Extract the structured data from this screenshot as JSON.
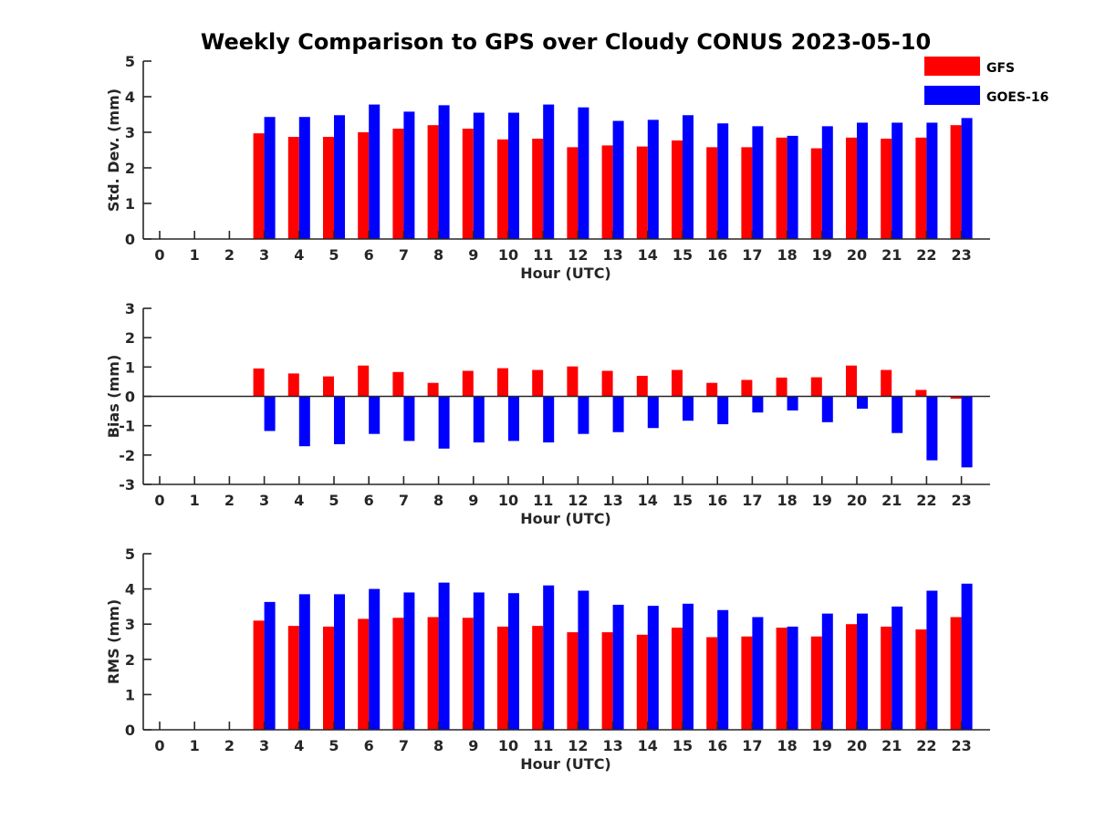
{
  "title": "Weekly Comparison to GPS over Cloudy CONUS 2023-05-10",
  "colors": {
    "GFS": "#ff0000",
    "GOES-16": "#0000ff",
    "axis": "#262626"
  },
  "chart_data": [
    {
      "type": "bar",
      "xlabel": "Hour (UTC)",
      "ylabel": "Std. Dev. (mm)",
      "ylim": [
        0,
        5
      ],
      "yticks": [
        0,
        1,
        2,
        3,
        4,
        5
      ],
      "legend_position": "top-right",
      "categories": [
        "0",
        "1",
        "2",
        "3",
        "4",
        "5",
        "6",
        "7",
        "8",
        "9",
        "10",
        "11",
        "12",
        "13",
        "14",
        "15",
        "16",
        "17",
        "18",
        "19",
        "20",
        "21",
        "22",
        "23"
      ],
      "series": [
        {
          "name": "GFS",
          "values": [
            null,
            null,
            null,
            2.97,
            2.87,
            2.87,
            3.0,
            3.1,
            3.2,
            3.1,
            2.8,
            2.82,
            2.58,
            2.63,
            2.6,
            2.77,
            2.58,
            2.58,
            2.85,
            2.55,
            2.85,
            2.82,
            2.85,
            3.2
          ]
        },
        {
          "name": "GOES-16",
          "values": [
            null,
            null,
            null,
            3.43,
            3.43,
            3.48,
            3.78,
            3.58,
            3.76,
            3.55,
            3.55,
            3.78,
            3.7,
            3.32,
            3.35,
            3.48,
            3.25,
            3.17,
            2.9,
            3.17,
            3.27,
            3.27,
            3.27,
            3.4
          ]
        }
      ]
    },
    {
      "type": "bar",
      "xlabel": "Hour (UTC)",
      "ylabel": "Bias (mm)",
      "ylim": [
        -3,
        3
      ],
      "yticks": [
        -3,
        -2,
        -1,
        0,
        1,
        2,
        3
      ],
      "categories": [
        "0",
        "1",
        "2",
        "3",
        "4",
        "5",
        "6",
        "7",
        "8",
        "9",
        "10",
        "11",
        "12",
        "13",
        "14",
        "15",
        "16",
        "17",
        "18",
        "19",
        "20",
        "21",
        "22",
        "23"
      ],
      "series": [
        {
          "name": "GFS",
          "values": [
            null,
            null,
            null,
            0.95,
            0.78,
            0.68,
            1.05,
            0.83,
            0.46,
            0.87,
            0.96,
            0.9,
            1.02,
            0.87,
            0.7,
            0.9,
            0.46,
            0.56,
            0.64,
            0.65,
            1.05,
            0.9,
            0.22,
            -0.08
          ]
        },
        {
          "name": "GOES-16",
          "values": [
            null,
            null,
            null,
            -1.18,
            -1.7,
            -1.63,
            -1.28,
            -1.52,
            -1.78,
            -1.57,
            -1.52,
            -1.57,
            -1.28,
            -1.22,
            -1.08,
            -0.83,
            -0.95,
            -0.55,
            -0.48,
            -0.88,
            -0.42,
            -1.25,
            -2.18,
            -2.42
          ]
        }
      ]
    },
    {
      "type": "bar",
      "xlabel": "Hour (UTC)",
      "ylabel": "RMS (mm)",
      "ylim": [
        0,
        5
      ],
      "yticks": [
        0,
        1,
        2,
        3,
        4,
        5
      ],
      "categories": [
        "0",
        "1",
        "2",
        "3",
        "4",
        "5",
        "6",
        "7",
        "8",
        "9",
        "10",
        "11",
        "12",
        "13",
        "14",
        "15",
        "16",
        "17",
        "18",
        "19",
        "20",
        "21",
        "22",
        "23"
      ],
      "series": [
        {
          "name": "GFS",
          "values": [
            null,
            null,
            null,
            3.1,
            2.95,
            2.93,
            3.15,
            3.18,
            3.2,
            3.18,
            2.93,
            2.95,
            2.77,
            2.77,
            2.7,
            2.9,
            2.63,
            2.65,
            2.9,
            2.65,
            3.0,
            2.93,
            2.85,
            3.2
          ]
        },
        {
          "name": "GOES-16",
          "values": [
            null,
            null,
            null,
            3.63,
            3.85,
            3.85,
            4.0,
            3.9,
            4.18,
            3.9,
            3.88,
            4.1,
            3.95,
            3.55,
            3.52,
            3.58,
            3.4,
            3.2,
            2.93,
            3.3,
            3.3,
            3.5,
            3.95,
            4.15
          ]
        }
      ]
    }
  ]
}
